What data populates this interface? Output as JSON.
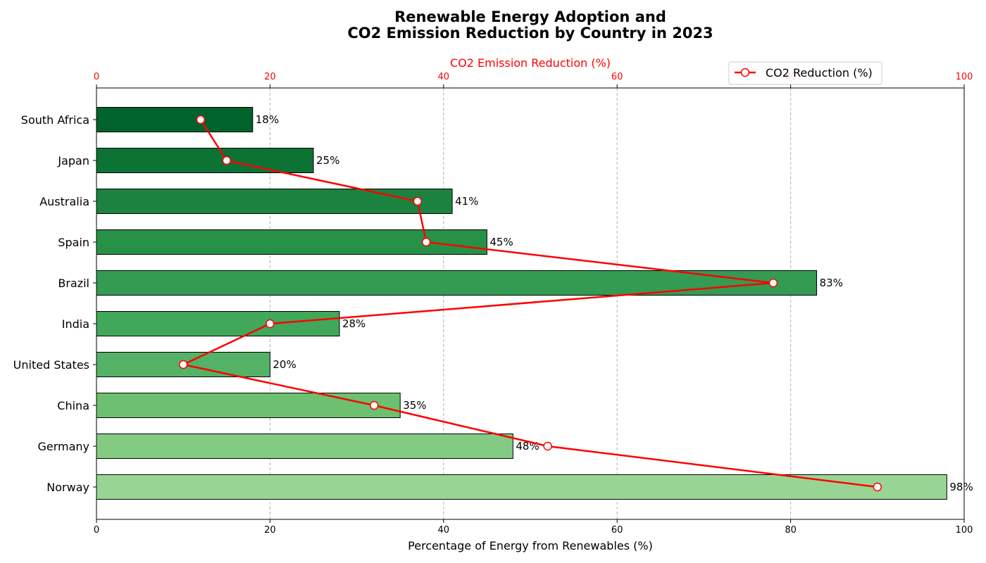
{
  "chart_data": {
    "type": "bar",
    "orientation": "horizontal",
    "title_lines": [
      "Renewable Energy Adoption and",
      "CO2 Emission Reduction by Country in 2023"
    ],
    "xlabel": "Percentage of Energy from Renewables (%)",
    "top_xlabel": "CO2 Emission Reduction (%)",
    "categories": [
      "Norway",
      "Germany",
      "China",
      "United States",
      "India",
      "Brazil",
      "Spain",
      "Australia",
      "Japan",
      "South Africa"
    ],
    "renewables_pct": [
      98,
      48,
      35,
      20,
      28,
      83,
      45,
      41,
      25,
      18
    ],
    "value_labels": [
      "98%",
      "48%",
      "35%",
      "20%",
      "28%",
      "83%",
      "45%",
      "41%",
      "25%",
      "18%"
    ],
    "co2_reduction_pct": [
      90,
      52,
      32,
      10,
      20,
      78,
      38,
      37,
      15,
      12
    ],
    "xlim": [
      0,
      100
    ],
    "top_xlim": [
      0,
      100
    ],
    "x_ticks": [
      "0",
      "20",
      "40",
      "60",
      "80",
      "100"
    ],
    "top_x_ticks": [
      "0",
      "20",
      "40",
      "60",
      "80",
      "100"
    ],
    "bar_colors": [
      "#98d594",
      "#83cb82",
      "#6cc06f",
      "#54b266",
      "#41a85b",
      "#339b52",
      "#289148",
      "#1b833f",
      "#0c7335",
      "#00632c"
    ],
    "line_color": "#ff0000",
    "legend": {
      "label": "CO2 Reduction (%)",
      "position": "top-right"
    },
    "grid": {
      "x": true,
      "style": "dashed"
    }
  }
}
